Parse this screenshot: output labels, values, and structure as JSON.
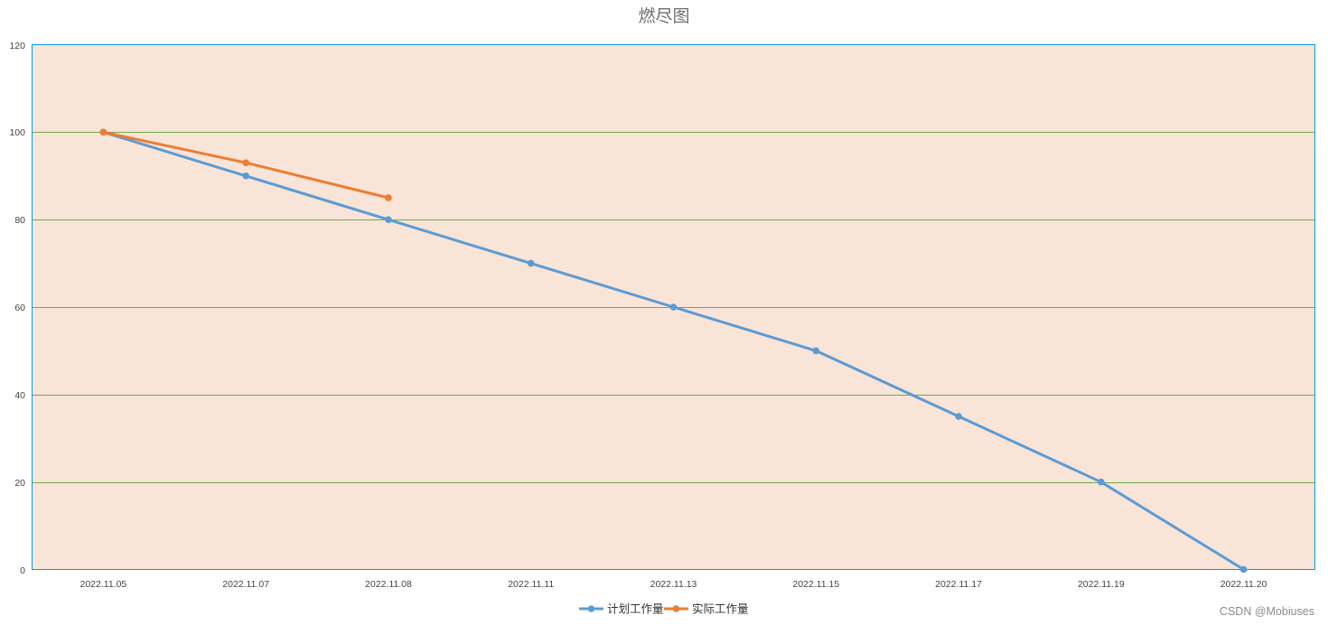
{
  "chart_data": {
    "type": "line",
    "title": "燃尽图",
    "categories": [
      "2022.11.05",
      "2022.11.07",
      "2022.11.08",
      "2022.11.11",
      "2022.11.13",
      "2022.11.15",
      "2022.11.17",
      "2022.11.19",
      "2022.11.20"
    ],
    "series": [
      {
        "name": "计划工作量",
        "color": "#5b9bd5",
        "values": [
          100,
          90,
          80,
          70,
          60,
          50,
          35,
          20,
          0
        ]
      },
      {
        "name": "实际工作量",
        "color": "#ed7d31",
        "values": [
          100,
          93,
          85,
          null,
          null,
          null,
          null,
          null,
          null
        ]
      }
    ],
    "ylim": [
      0,
      120
    ],
    "yticks": [
      0,
      20,
      40,
      60,
      80,
      100,
      120
    ],
    "grid": true,
    "legend_position": "bottom",
    "plot_background": "#f9e4d8",
    "grid_color": "#70ad47",
    "axis_color": "#00a0d8"
  },
  "watermark": "CSDN @Mobiuses"
}
